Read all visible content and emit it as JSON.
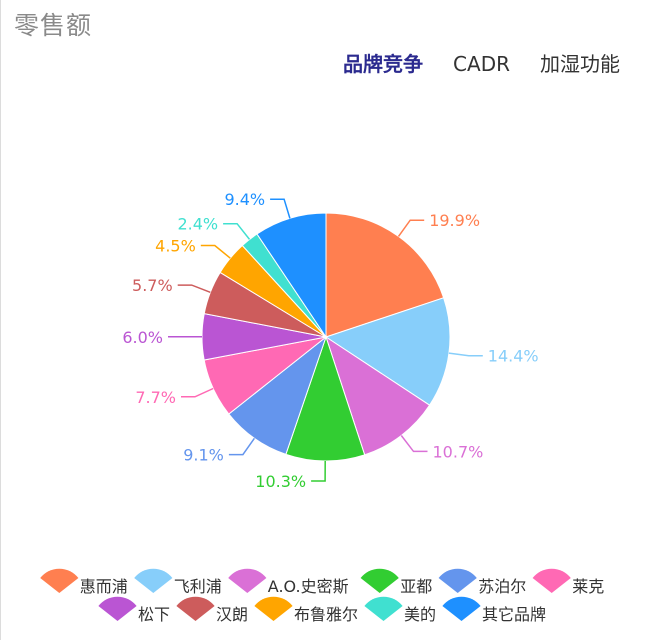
{
  "header": {
    "title": "零售额",
    "tabs": [
      {
        "label": "品牌竞争",
        "active": true
      },
      {
        "label": "CADR",
        "active": false
      },
      {
        "label": "加湿功能",
        "active": false
      }
    ]
  },
  "chart_data": {
    "type": "pie",
    "title": "",
    "start": "12 o'clock",
    "direction": "clockwise",
    "legend_position": "bottom",
    "slices": [
      {
        "label": "惠而浦",
        "value": 19.9,
        "display": "19.9%",
        "color": "#ff7f50"
      },
      {
        "label": "飞利浦",
        "value": 14.4,
        "display": "14.4%",
        "color": "#87cefa"
      },
      {
        "label": "A.O.史密斯",
        "value": 10.7,
        "display": "10.7%",
        "color": "#da70d6"
      },
      {
        "label": "亚都",
        "value": 10.3,
        "display": "10.3%",
        "color": "#32cd32"
      },
      {
        "label": "苏泊尔",
        "value": 9.1,
        "display": "9.1%",
        "color": "#6495ed"
      },
      {
        "label": "莱克",
        "value": 7.7,
        "display": "7.7%",
        "color": "#ff69b4"
      },
      {
        "label": "松下",
        "value": 6.0,
        "display": "6.0%",
        "color": "#ba55d3"
      },
      {
        "label": "汉朗",
        "value": 5.7,
        "display": "5.7%",
        "color": "#cd5c5c"
      },
      {
        "label": "布鲁雅尔",
        "value": 4.5,
        "display": "4.5%",
        "color": "#ffa500"
      },
      {
        "label": "美的",
        "value": 2.4,
        "display": "2.4%",
        "color": "#40e0d0"
      },
      {
        "label": "其它品牌",
        "value": 9.4,
        "display": "9.4%",
        "color": "#1e90ff"
      }
    ]
  }
}
